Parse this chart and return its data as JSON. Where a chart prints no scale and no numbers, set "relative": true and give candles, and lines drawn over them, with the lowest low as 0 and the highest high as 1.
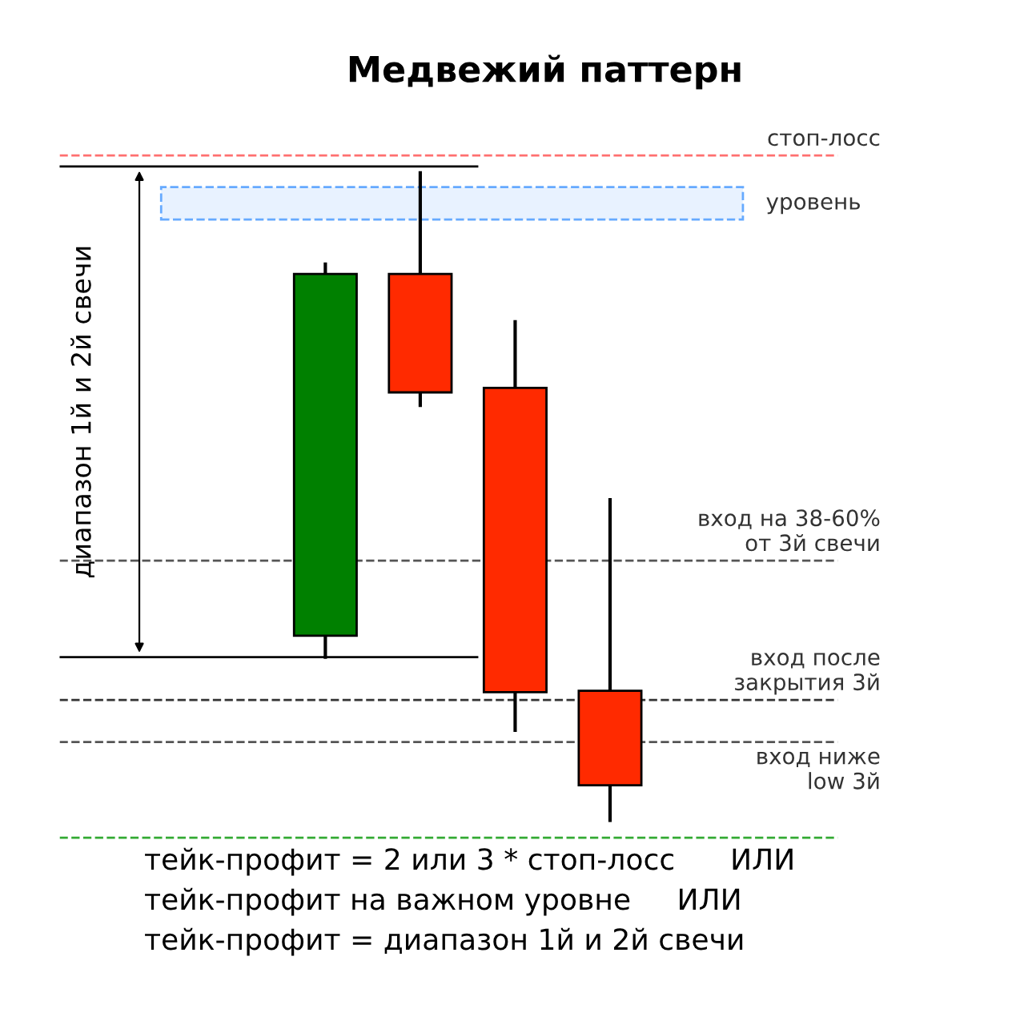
{
  "chart_data": {
    "type": "candlestick",
    "title": "Медвежий паттерн",
    "relative": true,
    "categories": [
      null,
      null,
      null,
      null
    ],
    "ohlc": [
      [
        0.285,
        0.859,
        0.252,
        0.844
      ],
      [
        0.844,
        1.0,
        0.641,
        0.661
      ],
      [
        0.668,
        0.77,
        0.139,
        0.198
      ],
      [
        0.2,
        0.495,
        0.0,
        0.054
      ]
    ],
    "colors": [
      "#008000",
      "#ff2a00",
      "#ff2a00",
      "#ff2a00"
    ],
    "ref_lines": [
      {
        "axis": "y",
        "value": 1.027,
        "label": "стоп-лосс",
        "color": "#ff7070",
        "line_style": "dashed"
      },
      {
        "axis": "y",
        "value": 1.01,
        "label": null,
        "color": "#000000",
        "line_style": "solid"
      },
      {
        "axis": "y",
        "value": 0.252,
        "label": null,
        "color": "#000000",
        "line_style": "solid"
      },
      {
        "axis": "y",
        "value": 0.401,
        "label": "вход на 38-60%\nот 3й свечи",
        "color": "#555555",
        "line_style": "dashed"
      },
      {
        "axis": "y",
        "value": 0.186,
        "label": "вход после\nзакрытия 3й",
        "color": "#333333",
        "line_style": "dashed"
      },
      {
        "axis": "y",
        "value": 0.121,
        "label": "вход ниже\nlow 3й",
        "color": "#555555",
        "line_style": "dashed"
      },
      {
        "axis": "y",
        "value": -0.027,
        "label": null,
        "color": "#33aa33",
        "line_style": "dashed"
      }
    ],
    "bands": [
      {
        "axis": "y",
        "from": 0.928,
        "to": 0.978,
        "label": "уровень",
        "color": "#66aaff"
      }
    ],
    "annotations": [
      "диапазон 1й и 2й свечи",
      "тейк-профит = 2 или 3 * стоп-лосс      ИЛИ",
      "тейк-профит на важном уровне     ИЛИ",
      "тейк-профит = диапазон 1й и 2й свечи"
    ]
  }
}
